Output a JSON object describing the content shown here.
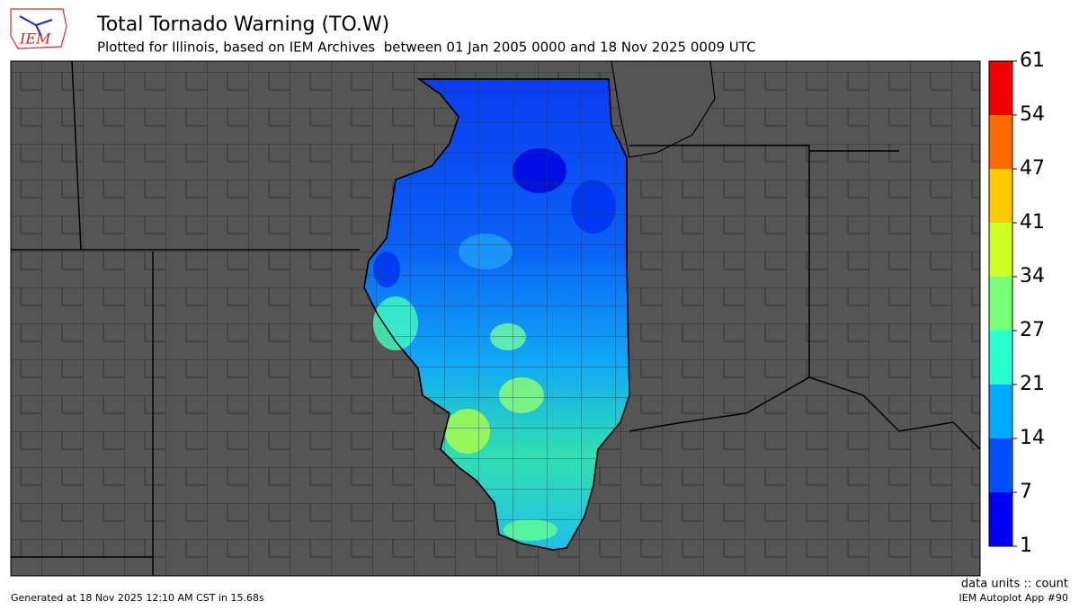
{
  "header": {
    "logo": "IEM",
    "title": "Total Tornado Warning (TO.W)",
    "subtitle": "Plotted for Illinois, based on IEM Archives  between 01 Jan 2005 0000 and 18 Nov 2025 0009 UTC"
  },
  "legend": {
    "ticks": [
      1,
      7,
      14,
      21,
      27,
      34,
      41,
      47,
      54,
      61
    ],
    "colors": [
      "#0000f5",
      "#0050ff",
      "#00aaff",
      "#28ffcc",
      "#78ff78",
      "#ccff22",
      "#ffc800",
      "#ff6a00",
      "#f00000"
    ],
    "units": "data units :: count"
  },
  "footer": {
    "generated": "Generated at 18 Nov 2025 12:10 AM CST in 15.68s",
    "app": "IEM Autoplot App #90"
  }
}
